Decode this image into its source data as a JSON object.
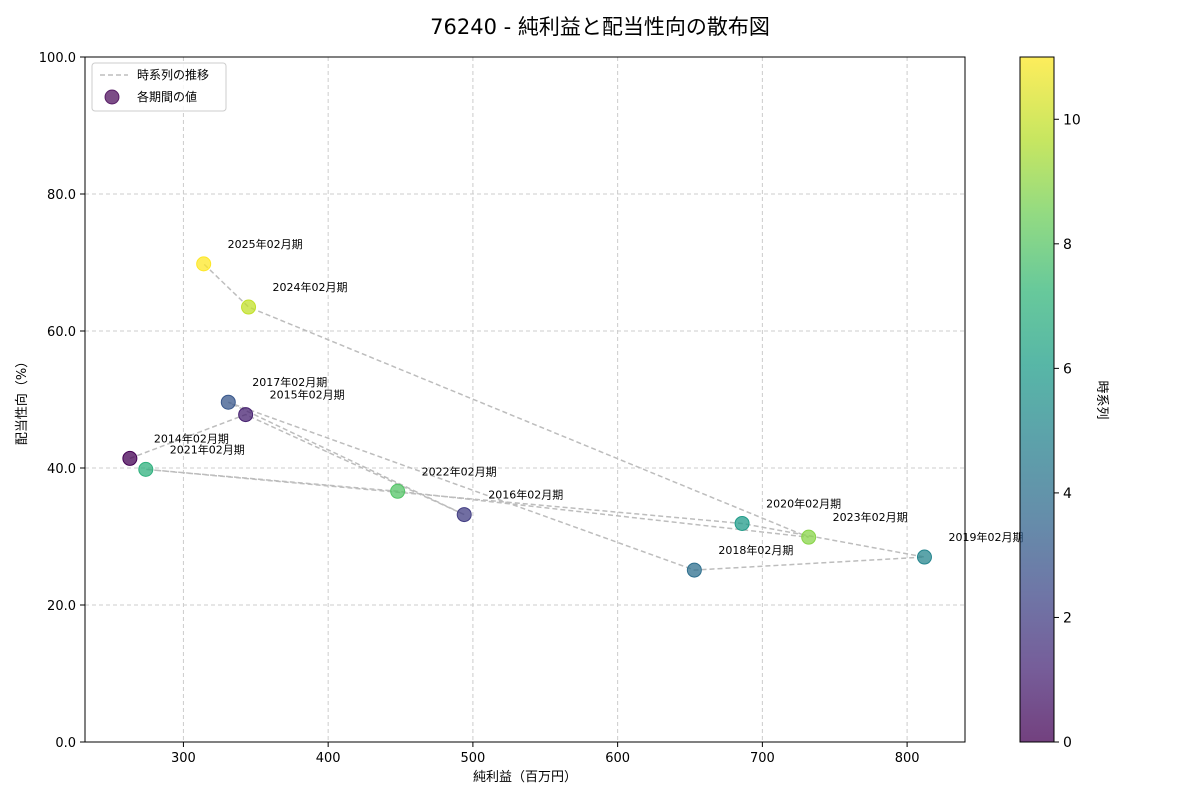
{
  "chart_data": {
    "type": "scatter",
    "title": "76240 - 純利益と配当性向の散布図",
    "xlabel": "純利益（百万円）",
    "ylabel": "配当性向（%）",
    "xlim": [
      232,
      840
    ],
    "ylim": [
      0,
      100
    ],
    "x_ticks": [
      300,
      400,
      500,
      600,
      700,
      800
    ],
    "y_ticks": [
      0,
      20,
      40,
      60,
      80,
      100
    ],
    "y_tick_labels": [
      "0.0",
      "20.0",
      "40.0",
      "60.0",
      "80.0",
      "100.0"
    ],
    "grid": true,
    "legend_position": "top-left",
    "legend": {
      "line_label": "時系列の推移",
      "marker_label": "各期間の値"
    },
    "colorbar": {
      "label": "時系列",
      "range": [
        0,
        11
      ],
      "ticks": [
        0,
        2,
        4,
        6,
        8,
        10
      ],
      "colormap": "viridis"
    },
    "colors": {
      "path_line": "#bdbdbd",
      "grid": "#cccccc",
      "viridis": [
        "#440154",
        "#482878",
        "#3e4989",
        "#31688e",
        "#26828e",
        "#1f9e89",
        "#35b779",
        "#6ece58",
        "#b5de2b",
        "#fde725"
      ]
    },
    "points": [
      {
        "label": "2014年02月期",
        "x": 263,
        "y": 41.4,
        "t": 0
      },
      {
        "label": "2015年02月期",
        "x": 343,
        "y": 47.8,
        "t": 1
      },
      {
        "label": "2016年02月期",
        "x": 494,
        "y": 33.2,
        "t": 2
      },
      {
        "label": "2017年02月期",
        "x": 331,
        "y": 49.6,
        "t": 3
      },
      {
        "label": "2018年02月期",
        "x": 653,
        "y": 25.1,
        "t": 4
      },
      {
        "label": "2019年02月期",
        "x": 812,
        "y": 27.0,
        "t": 5
      },
      {
        "label": "2020年02月期",
        "x": 686,
        "y": 31.9,
        "t": 6
      },
      {
        "label": "2021年02月期",
        "x": 274,
        "y": 39.8,
        "t": 7
      },
      {
        "label": "2022年02月期",
        "x": 448,
        "y": 36.6,
        "t": 8
      },
      {
        "label": "2023年02月期",
        "x": 732,
        "y": 29.9,
        "t": 9
      },
      {
        "label": "2024年02月期",
        "x": 345,
        "y": 63.5,
        "t": 10
      },
      {
        "label": "2025年02月期",
        "x": 314,
        "y": 69.8,
        "t": 11
      }
    ]
  }
}
